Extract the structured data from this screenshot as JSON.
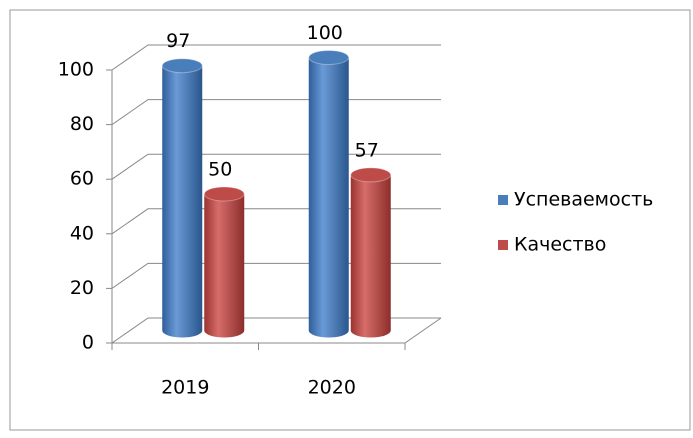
{
  "chart_data": {
    "type": "bar3d",
    "categories": [
      "2019",
      "2020"
    ],
    "series": [
      {
        "name": "Успеваемость",
        "color": "#4a7ebb",
        "values": [
          97,
          100
        ]
      },
      {
        "name": "Качество",
        "color": "#be4b48",
        "values": [
          50,
          57
        ]
      }
    ],
    "ylim": [
      0,
      100
    ],
    "yticks": [
      0,
      20,
      40,
      60,
      80,
      100
    ],
    "grid": true,
    "legend": "right"
  }
}
